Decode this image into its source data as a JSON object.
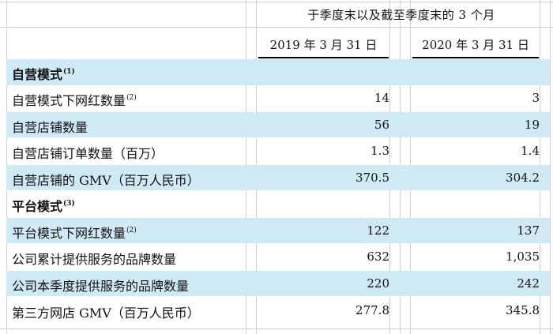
{
  "header": {
    "title": "于季度末以及截至季度末的 3 个月",
    "col_2019": "2019 年 3 月 31 日",
    "col_2020": "2020 年 3 月 31 日"
  },
  "colors": {
    "band": "#cfeaf5"
  },
  "rows": [
    {
      "label": "自营模式",
      "note": "(1)",
      "bold": true,
      "v2019": "",
      "v2020": ""
    },
    {
      "label": "自营模式下网红数量",
      "note": "(2)",
      "bold": false,
      "v2019": "14",
      "v2020": "3"
    },
    {
      "label": "自营店铺数量",
      "note": "",
      "bold": false,
      "v2019": "56",
      "v2020": "19"
    },
    {
      "label": "自营店铺订单数量（百万）",
      "note": "",
      "bold": false,
      "v2019": "1.3",
      "v2020": "1.4"
    },
    {
      "label": "自营店铺的 GMV（百万人民币）",
      "note": "",
      "bold": false,
      "v2019": "370.5",
      "v2020": "304.2"
    },
    {
      "label": "平台模式",
      "note": "(3)",
      "bold": true,
      "v2019": "",
      "v2020": ""
    },
    {
      "label": "平台模式下网红数量",
      "note": "(2)",
      "bold": false,
      "v2019": "122",
      "v2020": "137"
    },
    {
      "label": "公司累计提供服务的品牌数量",
      "note": "",
      "bold": false,
      "v2019": "632",
      "v2020": "1,035"
    },
    {
      "label": "公司本季度提供服务的品牌数量",
      "note": "",
      "bold": false,
      "v2019": "220",
      "v2020": "242"
    },
    {
      "label": "第三方网店 GMV（百万人民币）",
      "note": "",
      "bold": false,
      "v2019": "277.8",
      "v2020": "345.8"
    }
  ]
}
